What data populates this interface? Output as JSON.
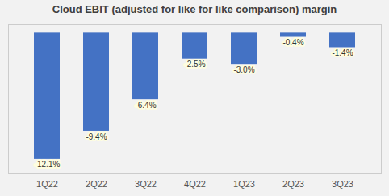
{
  "chart_data": {
    "type": "bar",
    "title": "Cloud EBIT (adjusted for like for like comparison) margin",
    "categories": [
      "1Q22",
      "2Q22",
      "3Q22",
      "4Q22",
      "1Q23",
      "2Q23",
      "3Q23"
    ],
    "values": [
      -12.1,
      -9.4,
      -6.4,
      -2.5,
      -3.0,
      -0.4,
      -1.4
    ],
    "value_labels": [
      "-12.1%",
      "-9.4%",
      "-6.4%",
      "-2.5%",
      "-3.0%",
      "-0.4%",
      "-1.4%"
    ],
    "data_labels": true,
    "color": "#4472C4",
    "ylim": [
      -13.5,
      0.8
    ],
    "grid": false,
    "tick_labels": "x"
  }
}
